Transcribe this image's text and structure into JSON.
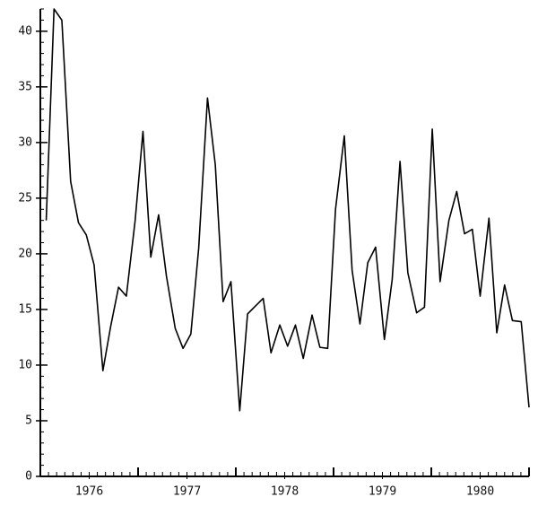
{
  "chart_data": {
    "type": "line",
    "x": [
      1976.06,
      1976.14,
      1976.22,
      1976.31,
      1976.39,
      1976.47,
      1976.55,
      1976.64,
      1976.72,
      1976.8,
      1976.88,
      1976.97,
      1977.05,
      1977.13,
      1977.21,
      1977.29,
      1977.38,
      1977.46,
      1977.54,
      1977.62,
      1977.71,
      1977.79,
      1977.87,
      1977.95,
      1978.04,
      1978.12,
      1978.2,
      1978.28,
      1978.36,
      1978.45,
      1978.53,
      1978.61,
      1978.69,
      1978.78,
      1978.86,
      1978.94,
      1979.02,
      1979.11,
      1979.19,
      1979.27,
      1979.35,
      1979.43,
      1979.52,
      1979.6,
      1979.68,
      1979.76,
      1979.85,
      1979.93,
      1980.01,
      1980.09,
      1980.18,
      1980.26,
      1980.34,
      1980.42,
      1980.5,
      1980.59,
      1980.67,
      1980.75,
      1980.83,
      1980.92,
      1981.0
    ],
    "values": [
      23,
      42,
      41,
      26.5,
      22.8,
      21.7,
      19,
      9.5,
      13.5,
      17,
      16.2,
      23,
      31,
      19.7,
      23.5,
      18,
      13.3,
      11.5,
      12.8,
      20.5,
      34,
      28,
      15.7,
      17.5,
      5.9,
      14.6,
      15.3,
      16,
      11.1,
      13.6,
      11.7,
      13.6,
      10.6,
      14.5,
      11.6,
      11.5,
      24,
      30.6,
      18.5,
      13.7,
      19.2,
      20.6,
      12.3,
      17.7,
      28.3,
      18.3,
      14.7,
      15.2,
      31.2,
      17.5,
      23,
      25.6,
      21.8,
      22.2,
      16.2,
      23.2,
      12.9,
      17.2,
      14,
      13.9,
      6.2
    ],
    "color": "#000000",
    "xlim": [
      1976,
      1981
    ],
    "xticks": [
      {
        "value": 1976.5,
        "label": "1976"
      },
      {
        "value": 1977.5,
        "label": "1977"
      },
      {
        "value": 1978.5,
        "label": "1978"
      },
      {
        "value": 1979.5,
        "label": "1979"
      },
      {
        "value": 1980.5,
        "label": "1980"
      }
    ],
    "ylim": [
      0,
      42
    ],
    "yticks": [
      0,
      5,
      10,
      15,
      20,
      25,
      30,
      35,
      40
    ],
    "grid": false
  }
}
